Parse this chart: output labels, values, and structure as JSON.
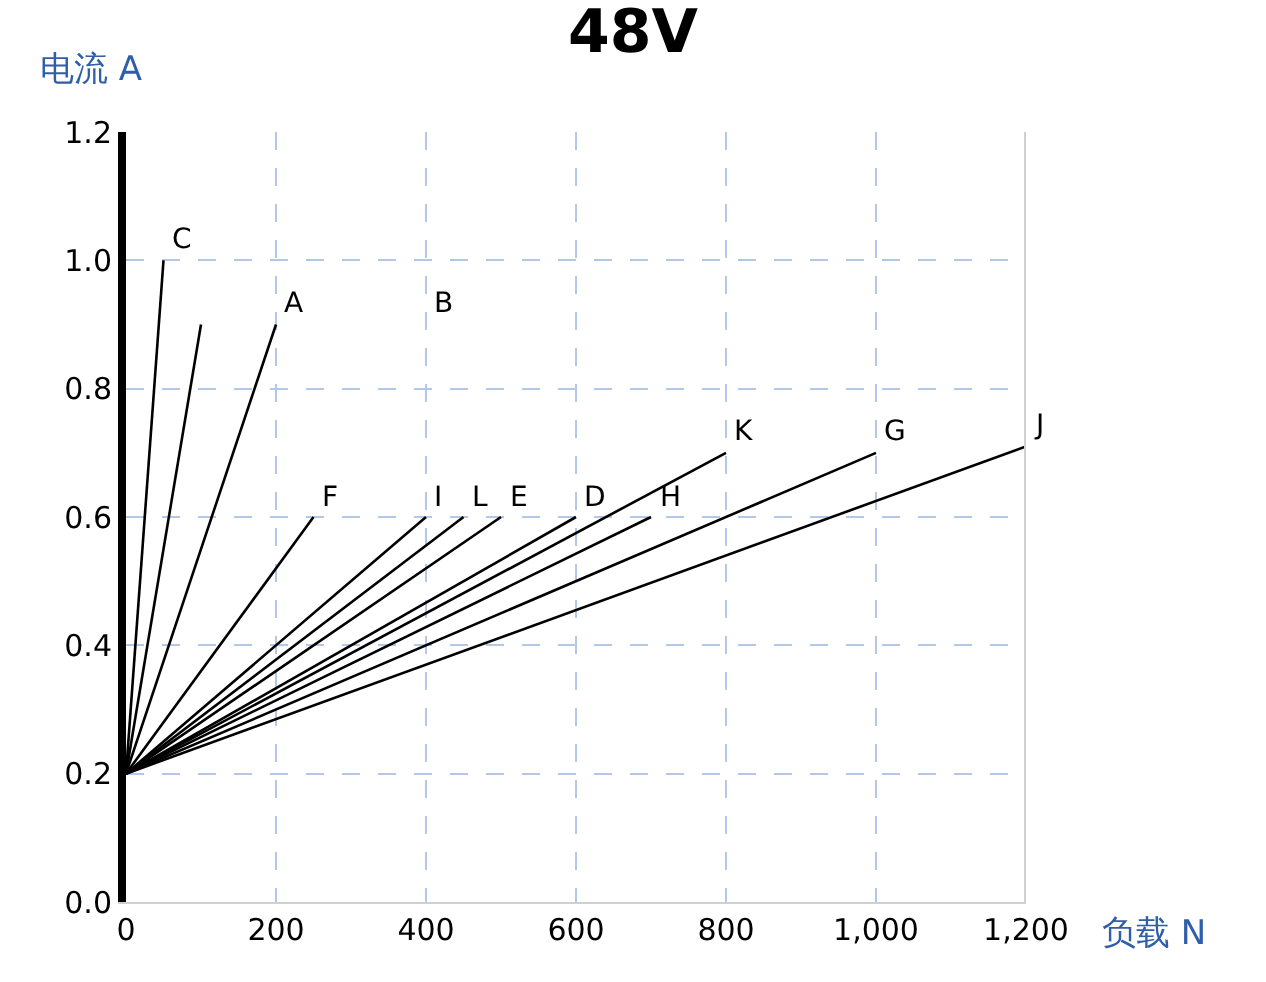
{
  "chart_data": {
    "type": "line",
    "title": "48V",
    "xlabel": "负载 N",
    "ylabel": "电流 A",
    "xlim": [
      0,
      1200
    ],
    "ylim": [
      0,
      1.2
    ],
    "xticks": [
      0,
      200,
      400,
      600,
      800,
      {
        "value": 1000,
        "label": "1,000"
      },
      {
        "value": 1200,
        "label": "1,200"
      }
    ],
    "yticks": [
      {
        "value": 0,
        "label": "0.0"
      },
      {
        "value": 0.2,
        "label": "0.2"
      },
      {
        "value": 0.4,
        "label": "0.4"
      },
      {
        "value": 0.6,
        "label": "0.6"
      },
      {
        "value": 0.8,
        "label": "0.8"
      },
      {
        "value": 1.0,
        "label": "1.0"
      },
      {
        "value": 1.2,
        "label": "1.2"
      }
    ],
    "grid": true,
    "marker": "none",
    "line_style": "solid",
    "series": [
      {
        "color": "#000000",
        "x": [
          0,
          50
        ],
        "values": [
          0.2,
          1.0
        ]
      },
      {
        "color": "#000000",
        "x": [
          0,
          100
        ],
        "values": [
          0.2,
          0.9
        ]
      },
      {
        "color": "#000000",
        "x": [
          0,
          200
        ],
        "values": [
          0.2,
          0.9
        ]
      },
      {
        "color": "#000000",
        "x": [
          0,
          250
        ],
        "values": [
          0.2,
          0.6
        ]
      },
      {
        "color": "#000000",
        "x": [
          0,
          400
        ],
        "values": [
          0.2,
          0.6
        ]
      },
      {
        "color": "#000000",
        "x": [
          0,
          450
        ],
        "values": [
          0.2,
          0.6
        ]
      },
      {
        "color": "#000000",
        "x": [
          0,
          500
        ],
        "values": [
          0.2,
          0.6
        ]
      },
      {
        "color": "#000000",
        "x": [
          0,
          600
        ],
        "values": [
          0.2,
          0.6
        ]
      },
      {
        "color": "#000000",
        "x": [
          0,
          700
        ],
        "values": [
          0.2,
          0.6
        ]
      },
      {
        "color": "#000000",
        "x": [
          0,
          800
        ],
        "values": [
          0.2,
          0.7
        ]
      },
      {
        "color": "#000000",
        "x": [
          0,
          1000
        ],
        "values": [
          0.2,
          0.7
        ]
      },
      {
        "color": "#000000",
        "x": [
          0,
          1200
        ],
        "values": [
          0.2,
          0.71
        ]
      }
    ],
    "annotations": [
      {
        "text": "C",
        "x": 50,
        "y": 1.0
      },
      {
        "text": "A",
        "x": 200,
        "y": 0.9
      },
      "B",
      {
        "text": "F",
        "x": 250,
        "y": 0.6
      },
      {
        "text": "I",
        "x": 400,
        "y": 0.6
      },
      {
        "text": "L",
        "x": 450,
        "y": 0.6
      },
      {
        "text": "E",
        "x": 500,
        "y": 0.6
      },
      {
        "text": "D",
        "x": 600,
        "y": 0.6
      },
      {
        "text": "H",
        "x": 700,
        "y": 0.6
      },
      {
        "text": "K",
        "x": 800,
        "y": 0.7
      },
      {
        "text": "G",
        "x": 1000,
        "y": 0.7
      },
      {
        "text": "J",
        "x": 1200,
        "y": 0.71
      }
    ]
  }
}
